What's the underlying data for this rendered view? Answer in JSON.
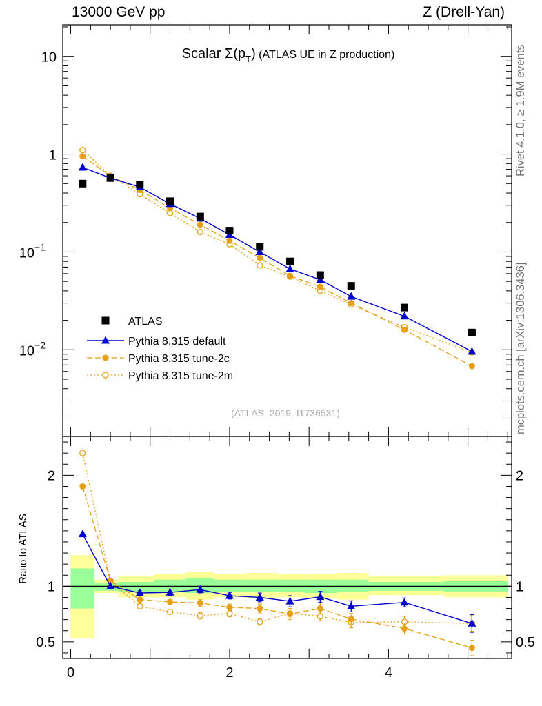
{
  "header": {
    "left": "13000 GeV pp",
    "right": "Z (Drell-Yan)"
  },
  "side": {
    "rivet": "Rivet 4.1.0, ≥ 1.9M events",
    "mcplots": "mcplots.cern.ch [arXiv:1306.3436]"
  },
  "colors": {
    "atlas": "#000000",
    "default": "#0000cc",
    "tune2c": "#e69e12",
    "tune2m": "#e69e12",
    "band_inner": "#99ff99",
    "band_outer": "#ffff99"
  },
  "chart_data": {
    "type": "line",
    "title_prefix": "Scalar ",
    "title_sigma": "Σ(p",
    "title_sub": "T",
    "title_close": ")",
    "title_suffix": " (ATLAS UE in Z production)",
    "watermark": "(ATLAS_2019_I1736531)",
    "x": [
      0.15,
      0.5,
      0.87,
      1.25,
      1.63,
      2.0,
      2.38,
      2.76,
      3.14,
      3.53,
      4.2,
      5.05
    ],
    "bins": [
      [
        0.0,
        0.3
      ],
      [
        0.3,
        0.6
      ],
      [
        0.6,
        1.05
      ],
      [
        1.05,
        1.45
      ],
      [
        1.45,
        1.8
      ],
      [
        1.8,
        2.2
      ],
      [
        2.2,
        2.6
      ],
      [
        2.6,
        2.95
      ],
      [
        2.95,
        3.35
      ],
      [
        3.35,
        3.75
      ],
      [
        3.75,
        4.7
      ],
      [
        4.7,
        5.5
      ]
    ],
    "xlim": [
      -0.1,
      5.55
    ],
    "xticks": [
      "0",
      "2",
      "4"
    ],
    "xtick_values": [
      0,
      2,
      4
    ],
    "top": {
      "ylim": [
        0.0013,
        21
      ],
      "yscale": "log",
      "yticks": [
        {
          "value": 10,
          "base": "10",
          "exp": ""
        },
        {
          "value": 1,
          "base": "1",
          "exp": ""
        },
        {
          "value": 0.1,
          "base": "10",
          "exp": "−1"
        },
        {
          "value": 0.01,
          "base": "10",
          "exp": "−2"
        }
      ]
    },
    "ratio": {
      "ylabel": "Ratio to ATLAS",
      "ylim": [
        0.35,
        2.35
      ],
      "yticks": [
        "0.5",
        "1",
        "2"
      ],
      "ytick_values": [
        0.5,
        1,
        2
      ],
      "inner_band": [
        [
          0.8,
          1.16
        ],
        [
          0.96,
          1.03
        ],
        [
          0.95,
          1.04
        ],
        [
          0.95,
          1.06
        ],
        [
          0.94,
          1.07
        ],
        [
          0.95,
          1.06
        ],
        [
          0.95,
          1.06
        ],
        [
          0.95,
          1.06
        ],
        [
          0.94,
          1.06
        ],
        [
          0.95,
          1.06
        ],
        [
          0.96,
          1.04
        ],
        [
          0.95,
          1.05
        ]
      ],
      "outer_band": [
        [
          0.53,
          1.28
        ],
        [
          0.94,
          1.06
        ],
        [
          0.9,
          1.09
        ],
        [
          0.9,
          1.11
        ],
        [
          0.88,
          1.13
        ],
        [
          0.9,
          1.11
        ],
        [
          0.89,
          1.12
        ],
        [
          0.9,
          1.11
        ],
        [
          0.89,
          1.11
        ],
        [
          0.88,
          1.12
        ],
        [
          0.92,
          1.09
        ],
        [
          0.9,
          1.1
        ]
      ]
    },
    "series": [
      {
        "name": "ATLAS",
        "key": "atlas",
        "marker": "square",
        "line": "none",
        "values": [
          0.5,
          0.57,
          0.49,
          0.33,
          0.23,
          0.165,
          0.113,
          0.08,
          0.058,
          0.045,
          0.027,
          0.015
        ],
        "ratio": [
          1,
          1,
          1,
          1,
          1,
          1,
          1,
          1,
          1,
          1,
          1,
          1
        ]
      },
      {
        "name": "Pythia 8.315 default",
        "key": "default",
        "marker": "triangle",
        "line": "solid",
        "values": [
          0.73,
          0.57,
          0.46,
          0.31,
          0.22,
          0.15,
          0.1,
          0.067,
          0.052,
          0.035,
          0.022,
          0.0096
        ],
        "ratio": [
          1.47,
          1.0,
          0.94,
          0.945,
          0.97,
          0.915,
          0.9,
          0.865,
          0.905,
          0.82,
          0.855,
          0.665
        ],
        "ratio_err": [
          0.0,
          0.0,
          0.02,
          0.03,
          0.03,
          0.03,
          0.04,
          0.05,
          0.05,
          0.05,
          0.04,
          0.08
        ]
      },
      {
        "name": "Pythia 8.315 tune-2c",
        "key": "tune2c",
        "marker": "circle-filled",
        "line": "dashed",
        "values": [
          0.95,
          0.6,
          0.43,
          0.28,
          0.19,
          0.13,
          0.087,
          0.057,
          0.044,
          0.03,
          0.016,
          0.0068
        ],
        "ratio": [
          1.9,
          1.05,
          0.88,
          0.86,
          0.85,
          0.81,
          0.8,
          0.75,
          0.8,
          0.705,
          0.62,
          0.445
        ],
        "ratio_err": [
          0.0,
          0.0,
          0.0,
          0.02,
          0.03,
          0.03,
          0.04,
          0.05,
          0.05,
          0.05,
          0.05,
          0.07
        ]
      },
      {
        "name": "Pythia 8.315 tune-2m",
        "key": "tune2m",
        "marker": "circle-open",
        "line": "dotted",
        "values": [
          1.1,
          0.6,
          0.39,
          0.25,
          0.16,
          0.12,
          0.073,
          0.056,
          0.04,
          0.029,
          0.017,
          0.0094
        ],
        "ratio": [
          2.2,
          1.05,
          0.82,
          0.77,
          0.735,
          0.755,
          0.68,
          0.755,
          0.73,
          0.675,
          0.68,
          0.665
        ],
        "ratio_err": [
          0.0,
          0.0,
          0.0,
          0.0,
          0.03,
          0.03,
          0.03,
          0.04,
          0.04,
          0.05,
          0.05,
          0.07
        ]
      }
    ]
  }
}
